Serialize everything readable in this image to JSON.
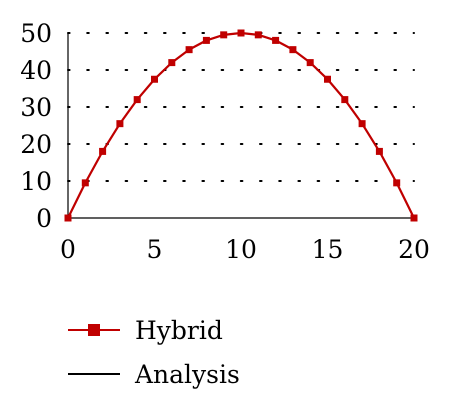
{
  "chart_data": {
    "type": "line",
    "title": "",
    "xlabel": "",
    "ylabel": "",
    "xlim": [
      0,
      20
    ],
    "ylim": [
      0,
      50
    ],
    "x_ticks": [
      "0",
      "5",
      "10",
      "15",
      "20"
    ],
    "y_ticks": [
      "0",
      "10",
      "20",
      "30",
      "40",
      "50"
    ],
    "grid": "dotted horizontal",
    "legend_position": "bottom-left",
    "series": [
      {
        "name": "Hybrid",
        "style": "line-with-square-markers",
        "color": "#c00000",
        "x": [
          0,
          1,
          2,
          3,
          4,
          5,
          6,
          7,
          8,
          9,
          10,
          11,
          12,
          13,
          14,
          15,
          16,
          17,
          18,
          19,
          20
        ],
        "y": [
          0,
          9.5,
          18,
          25.5,
          32,
          37.5,
          42,
          45.5,
          48,
          49.5,
          50,
          49.5,
          48,
          45.5,
          42,
          37.5,
          32,
          25.5,
          18,
          9.5,
          0
        ]
      },
      {
        "name": "Analysis",
        "style": "line",
        "color": "#000000",
        "x": [
          0,
          1,
          2,
          3,
          4,
          5,
          6,
          7,
          8,
          9,
          10,
          11,
          12,
          13,
          14,
          15,
          16,
          17,
          18,
          19,
          20
        ],
        "y": [
          0,
          9.5,
          18,
          25.5,
          32,
          37.5,
          42,
          45.5,
          48,
          49.5,
          50,
          49.5,
          48,
          45.5,
          42,
          37.5,
          32,
          25.5,
          18,
          9.5,
          0
        ]
      }
    ]
  }
}
